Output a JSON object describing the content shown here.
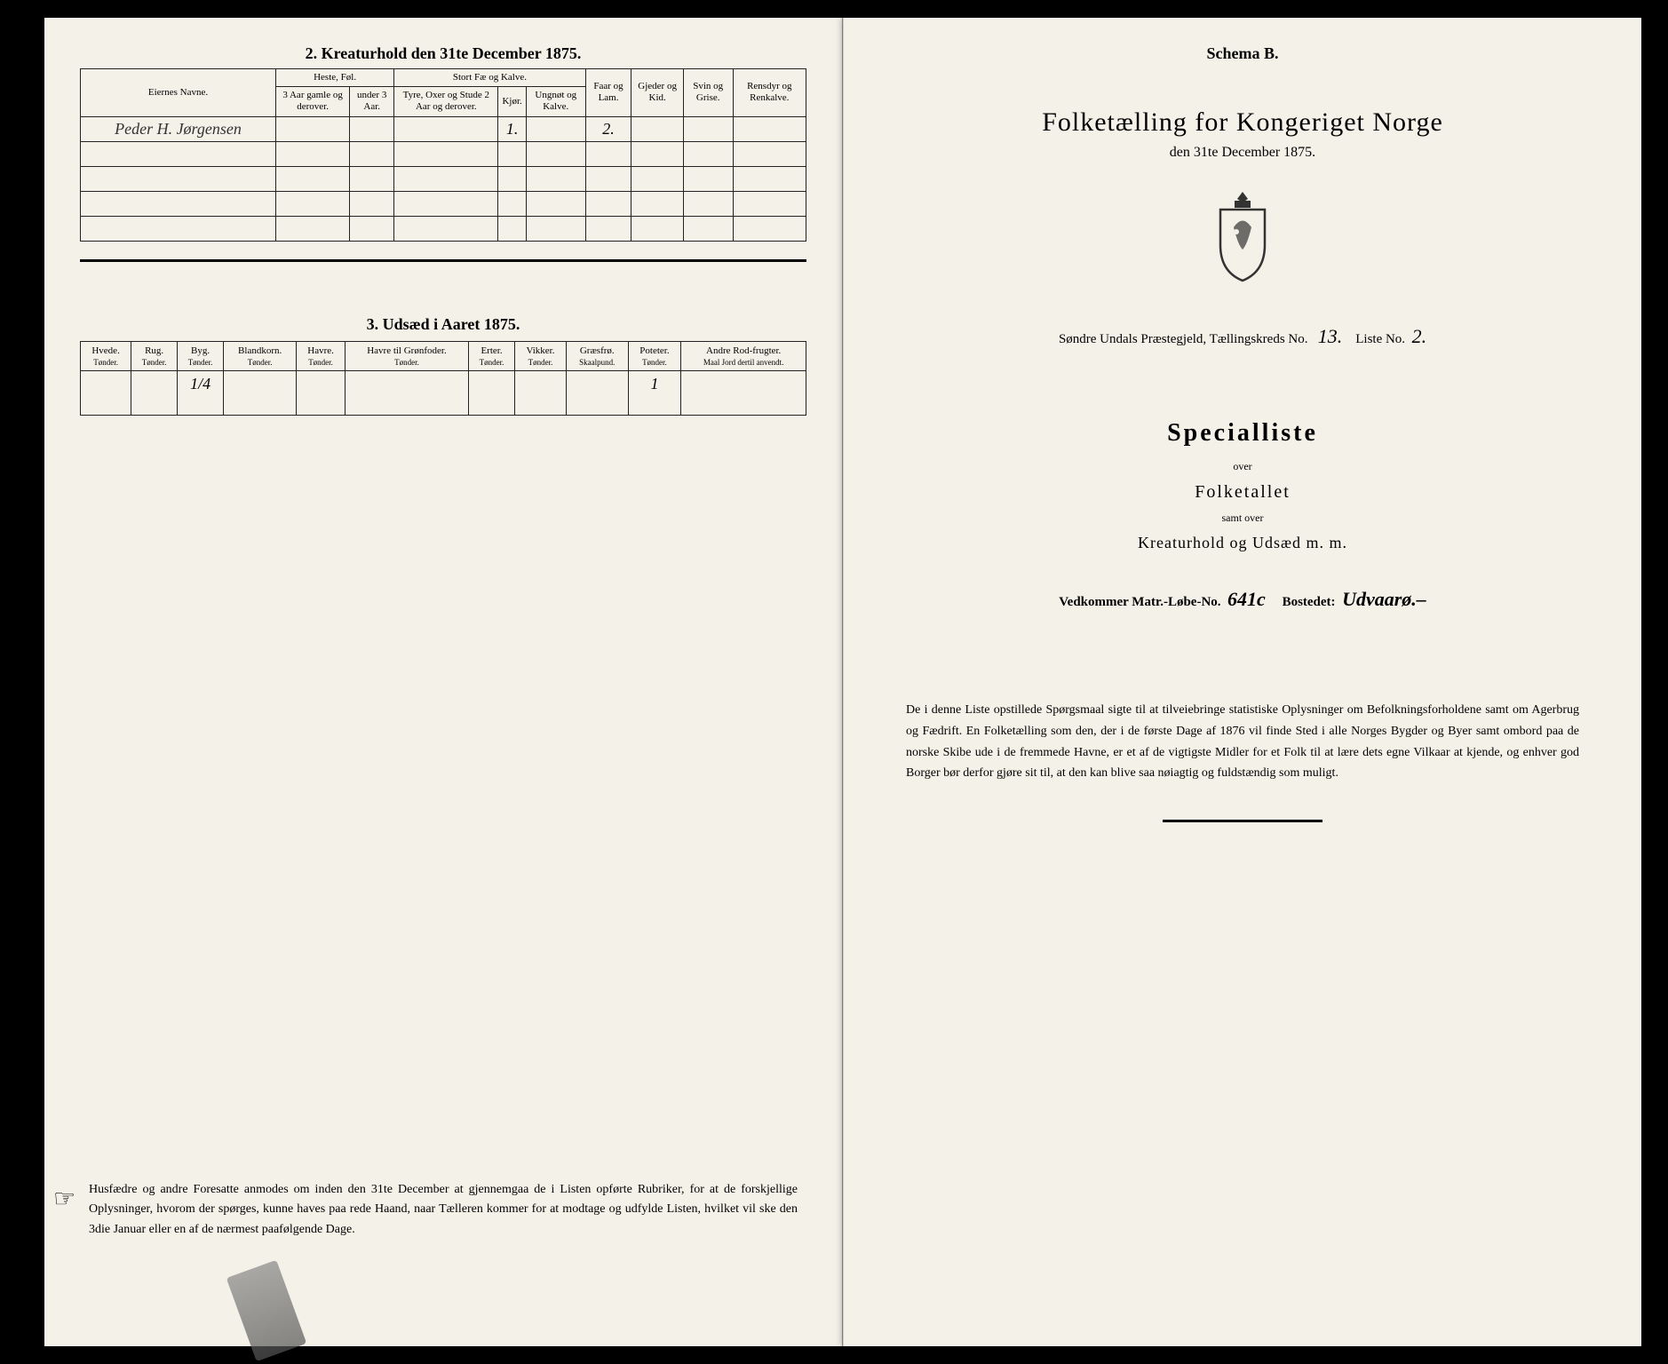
{
  "left": {
    "section2_title": "2.  Kreaturhold den 31te December 1875.",
    "table2": {
      "owner_header": "Eiernes Navne.",
      "group_heste": "Heste, Føl.",
      "group_stort": "Stort Fæ og Kalve.",
      "col_h1": "3 Aar gamle og derover.",
      "col_h2": "under 3 Aar.",
      "col_s1": "Tyre, Oxer og Stude 2 Aar og derover.",
      "col_s2": "Kjør.",
      "col_s3": "Ungnøt og Kalve.",
      "col_faar": "Faar og Lam.",
      "col_gjed": "Gjeder og Kid.",
      "col_svin": "Svin og Grise.",
      "col_ren": "Rensdyr og Renkalve.",
      "rows": [
        {
          "owner": "Peder H. Jørgensen",
          "kjor": "1.",
          "faar": "2."
        }
      ]
    },
    "section3_title": "3.  Udsæd i Aaret 1875.",
    "table3": {
      "cols": [
        {
          "h": "Hvede.",
          "s": "Tønder."
        },
        {
          "h": "Rug.",
          "s": "Tønder."
        },
        {
          "h": "Byg.",
          "s": "Tønder."
        },
        {
          "h": "Blandkorn.",
          "s": "Tønder."
        },
        {
          "h": "Havre.",
          "s": "Tønder."
        },
        {
          "h": "Havre til Grønfoder.",
          "s": "Tønder."
        },
        {
          "h": "Erter.",
          "s": "Tønder."
        },
        {
          "h": "Vikker.",
          "s": "Tønder."
        },
        {
          "h": "Græsfrø.",
          "s": "Skaalpund."
        },
        {
          "h": "Poteter.",
          "s": "Tønder."
        },
        {
          "h": "Andre Rod-frugter.",
          "s": "Maal Jord dertil anvendt."
        }
      ],
      "row": {
        "byg": "1/4",
        "poteter": "1"
      }
    },
    "footnote": "Husfædre og andre Foresatte anmodes om inden den 31te December at gjennemgaa de i Listen opførte Rubriker, for at de forskjellige Oplysninger, hvorom der spørges, kunne haves paa rede Haand, naar Tælleren kommer for at modtage og udfylde Listen, hvilket vil ske den 3die Januar eller en af de nærmest paafølgende Dage."
  },
  "right": {
    "schema": "Schema B.",
    "title": "Folketælling for Kongeriget Norge",
    "subtitle": "den 31te December 1875.",
    "parish_prefix": "Søndre Undals Præstegjeld,   Tællingskreds No.",
    "kreds_no": "13.",
    "liste_label": "Liste No.",
    "liste_no": "2.",
    "special": "Specialliste",
    "over": "over",
    "folketallet": "Folketallet",
    "samt": "samt over",
    "kreatur": "Kreaturhold  og  Udsæd  m. m.",
    "vedk_prefix": "Vedkommer Matr.-Løbe-No.",
    "matr_no": "641c",
    "bosted_label": "Bostedet:",
    "bosted": "Udvaarø.–",
    "note": "De i denne Liste opstillede Spørgsmaal sigte til at tilveiebringe statistiske Oplysninger om Befolkningsforholdene samt om Agerbrug og Fædrift.  En Folketælling som den, der i de første Dage af 1876 vil finde Sted i alle Norges Bygder og Byer samt ombord paa de norske Skibe ude i de fremmede Havne, er et af de vigtigste Midler for et Folk til at lære dets egne Vilkaar at kjende, og enhver god Borger bør derfor gjøre sit til, at den kan blive saa nøiagtig og fuldstændig som muligt."
  }
}
